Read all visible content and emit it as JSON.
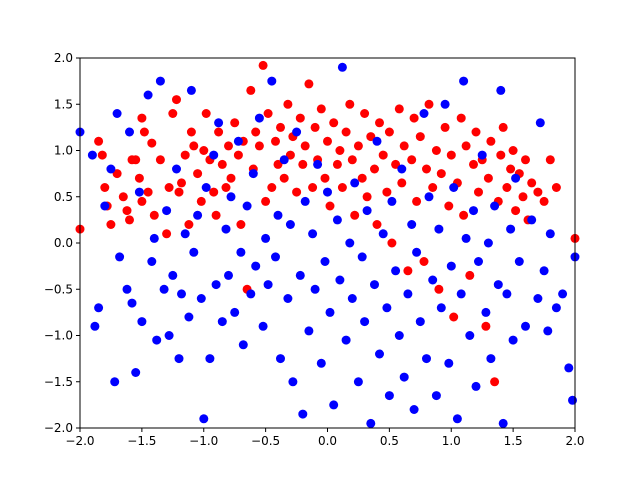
{
  "chart_data": {
    "type": "scatter",
    "title": "",
    "xlabel": "",
    "ylabel": "",
    "xlim": [
      -2.0,
      2.0
    ],
    "ylim": [
      -2.0,
      2.0
    ],
    "grid": false,
    "x_ticks": [
      "−2.0",
      "−1.5",
      "−1.0",
      "−0.5",
      "0.0",
      "0.5",
      "1.0",
      "1.5",
      "2.0"
    ],
    "y_ticks": [
      "−2.0",
      "−1.5",
      "−1.0",
      "−0.5",
      "0.0",
      "0.5",
      "1.0",
      "1.5",
      "2.0"
    ],
    "series": [
      {
        "color": "#ff0000",
        "points": [
          [
            -2.0,
            0.15
          ],
          [
            -1.85,
            1.1
          ],
          [
            -1.82,
            0.95
          ],
          [
            -1.8,
            0.6
          ],
          [
            -1.78,
            0.4
          ],
          [
            -1.75,
            0.2
          ],
          [
            -1.7,
            0.75
          ],
          [
            -1.65,
            0.5
          ],
          [
            -1.62,
            0.35
          ],
          [
            -1.6,
            0.25
          ],
          [
            -1.58,
            0.9
          ],
          [
            -1.55,
            0.9
          ],
          [
            -1.52,
            0.7
          ],
          [
            -1.5,
            0.45
          ],
          [
            -1.45,
            0.55
          ],
          [
            -1.5,
            1.35
          ],
          [
            -1.48,
            1.2
          ],
          [
            -1.42,
            1.08
          ],
          [
            -1.4,
            0.3
          ],
          [
            -1.35,
            0.9
          ],
          [
            -1.3,
            0.1
          ],
          [
            -1.28,
            0.6
          ],
          [
            -1.25,
            1.4
          ],
          [
            -1.22,
            1.55
          ],
          [
            -1.2,
            0.55
          ],
          [
            -1.18,
            0.65
          ],
          [
            -1.15,
            0.95
          ],
          [
            -1.12,
            0.2
          ],
          [
            -1.1,
            1.2
          ],
          [
            -1.08,
            1.05
          ],
          [
            -1.05,
            0.75
          ],
          [
            -1.02,
            0.45
          ],
          [
            -1.0,
            1.0
          ],
          [
            -0.98,
            1.4
          ],
          [
            -0.95,
            0.9
          ],
          [
            -0.92,
            0.55
          ],
          [
            -0.9,
            0.3
          ],
          [
            -0.88,
            1.2
          ],
          [
            -0.85,
            0.85
          ],
          [
            -0.82,
            0.6
          ],
          [
            -0.8,
            1.05
          ],
          [
            -0.78,
            0.7
          ],
          [
            -0.75,
            1.3
          ],
          [
            -0.72,
            0.95
          ],
          [
            -0.7,
            0.2
          ],
          [
            -0.68,
            1.1
          ],
          [
            -0.65,
            -0.5
          ],
          [
            -0.62,
            1.65
          ],
          [
            -0.6,
            0.8
          ],
          [
            -0.58,
            1.2
          ],
          [
            -0.55,
            1.05
          ],
          [
            -0.52,
            1.92
          ],
          [
            -0.5,
            0.45
          ],
          [
            -0.48,
            1.4
          ],
          [
            -0.45,
            0.6
          ],
          [
            -0.42,
            1.1
          ],
          [
            -0.4,
            0.85
          ],
          [
            -0.38,
            1.25
          ],
          [
            -0.35,
            0.7
          ],
          [
            -0.32,
            1.5
          ],
          [
            -0.3,
            0.95
          ],
          [
            -0.28,
            1.15
          ],
          [
            -0.25,
            0.55
          ],
          [
            -0.22,
            1.35
          ],
          [
            -0.2,
            0.85
          ],
          [
            -0.18,
            1.05
          ],
          [
            -0.15,
            1.72
          ],
          [
            -0.12,
            0.6
          ],
          [
            -0.1,
            1.25
          ],
          [
            -0.08,
            0.9
          ],
          [
            -0.05,
            1.45
          ],
          [
            -0.02,
            0.7
          ],
          [
            0.0,
            1.1
          ],
          [
            0.02,
            0.4
          ],
          [
            0.05,
            1.3
          ],
          [
            0.08,
            0.85
          ],
          [
            0.1,
            1.0
          ],
          [
            0.12,
            0.6
          ],
          [
            0.15,
            1.2
          ],
          [
            0.18,
            1.5
          ],
          [
            0.2,
            0.9
          ],
          [
            0.22,
            0.3
          ],
          [
            0.25,
            1.05
          ],
          [
            0.28,
            0.7
          ],
          [
            0.3,
            1.4
          ],
          [
            0.32,
            0.5
          ],
          [
            0.35,
            1.15
          ],
          [
            0.38,
            0.8
          ],
          [
            0.4,
            0.2
          ],
          [
            0.42,
            1.3
          ],
          [
            0.45,
            0.95
          ],
          [
            0.48,
            0.55
          ],
          [
            0.5,
            1.2
          ],
          [
            0.52,
            0.0
          ],
          [
            0.55,
            0.85
          ],
          [
            0.58,
            1.45
          ],
          [
            0.6,
            0.65
          ],
          [
            0.62,
            1.05
          ],
          [
            0.65,
            -0.3
          ],
          [
            0.68,
            0.9
          ],
          [
            0.7,
            1.35
          ],
          [
            0.72,
            0.45
          ],
          [
            0.75,
            1.15
          ],
          [
            0.78,
            -0.2
          ],
          [
            0.8,
            0.8
          ],
          [
            0.82,
            1.5
          ],
          [
            0.85,
            0.6
          ],
          [
            0.88,
            1.0
          ],
          [
            0.9,
            -0.5
          ],
          [
            0.92,
            0.75
          ],
          [
            0.95,
            1.25
          ],
          [
            0.98,
            0.4
          ],
          [
            1.0,
            0.95
          ],
          [
            1.02,
            -0.8
          ],
          [
            1.05,
            0.65
          ],
          [
            1.08,
            1.35
          ],
          [
            1.1,
            0.3
          ],
          [
            1.12,
            1.05
          ],
          [
            1.15,
            -0.35
          ],
          [
            1.18,
            0.85
          ],
          [
            1.2,
            1.2
          ],
          [
            1.22,
            0.55
          ],
          [
            1.25,
            0.9
          ],
          [
            1.28,
            -0.9
          ],
          [
            1.3,
            0.7
          ],
          [
            1.32,
            1.1
          ],
          [
            1.35,
            -1.5
          ],
          [
            1.38,
            0.45
          ],
          [
            1.4,
            0.95
          ],
          [
            1.42,
            1.25
          ],
          [
            1.45,
            0.6
          ],
          [
            1.48,
            0.8
          ],
          [
            1.5,
            1.0
          ],
          [
            1.52,
            0.35
          ],
          [
            1.55,
            0.75
          ],
          [
            1.58,
            0.5
          ],
          [
            1.6,
            0.9
          ],
          [
            1.62,
            0.25
          ],
          [
            1.65,
            0.65
          ],
          [
            1.7,
            0.55
          ],
          [
            1.75,
            0.45
          ],
          [
            1.8,
            0.9
          ],
          [
            1.85,
            0.6
          ],
          [
            2.0,
            0.05
          ]
        ]
      },
      {
        "color": "#0000ff",
        "points": [
          [
            -2.0,
            1.2
          ],
          [
            -1.9,
            0.95
          ],
          [
            -1.88,
            -0.9
          ],
          [
            -1.85,
            -0.7
          ],
          [
            -1.8,
            0.4
          ],
          [
            -1.75,
            0.8
          ],
          [
            -1.72,
            -1.5
          ],
          [
            -1.7,
            1.4
          ],
          [
            -1.68,
            -0.15
          ],
          [
            -1.62,
            -0.5
          ],
          [
            -1.6,
            1.2
          ],
          [
            -1.58,
            -0.65
          ],
          [
            -1.55,
            -1.4
          ],
          [
            -1.52,
            0.55
          ],
          [
            -1.5,
            -0.85
          ],
          [
            -1.45,
            1.6
          ],
          [
            -1.42,
            -0.2
          ],
          [
            -1.4,
            0.05
          ],
          [
            -1.38,
            -1.05
          ],
          [
            -1.35,
            1.75
          ],
          [
            -1.32,
            -0.5
          ],
          [
            -1.3,
            0.35
          ],
          [
            -1.28,
            -1.0
          ],
          [
            -1.25,
            -0.35
          ],
          [
            -1.22,
            0.8
          ],
          [
            -1.2,
            -1.25
          ],
          [
            -1.18,
            -0.55
          ],
          [
            -1.15,
            0.1
          ],
          [
            -1.12,
            -0.8
          ],
          [
            -1.1,
            1.65
          ],
          [
            -1.08,
            -0.1
          ],
          [
            -1.05,
            0.3
          ],
          [
            -1.02,
            -0.6
          ],
          [
            -1.0,
            -1.9
          ],
          [
            -0.98,
            0.6
          ],
          [
            -0.95,
            -1.25
          ],
          [
            -0.92,
            0.95
          ],
          [
            -0.9,
            -0.45
          ],
          [
            -0.88,
            1.3
          ],
          [
            -0.85,
            -0.85
          ],
          [
            -0.82,
            0.15
          ],
          [
            -0.8,
            -0.35
          ],
          [
            -0.78,
            0.5
          ],
          [
            -0.75,
            -0.75
          ],
          [
            -0.72,
            1.1
          ],
          [
            -0.7,
            -0.1
          ],
          [
            -0.68,
            -1.1
          ],
          [
            -0.65,
            0.4
          ],
          [
            -0.62,
            -0.55
          ],
          [
            -0.6,
            0.75
          ],
          [
            -0.58,
            -0.25
          ],
          [
            -0.55,
            1.35
          ],
          [
            -0.52,
            -0.9
          ],
          [
            -0.5,
            0.05
          ],
          [
            -0.48,
            -0.45
          ],
          [
            -0.45,
            1.75
          ],
          [
            -0.42,
            -0.15
          ],
          [
            -0.4,
            0.3
          ],
          [
            -0.38,
            -1.25
          ],
          [
            -0.35,
            0.9
          ],
          [
            -0.32,
            -0.6
          ],
          [
            -0.3,
            0.2
          ],
          [
            -0.28,
            -1.5
          ],
          [
            -0.25,
            1.2
          ],
          [
            -0.22,
            -0.35
          ],
          [
            -0.2,
            -1.85
          ],
          [
            -0.18,
            0.45
          ],
          [
            -0.15,
            -0.95
          ],
          [
            -0.12,
            0.1
          ],
          [
            -0.1,
            -0.5
          ],
          [
            -0.08,
            0.85
          ],
          [
            -0.05,
            -1.3
          ],
          [
            -0.02,
            -0.2
          ],
          [
            0.0,
            0.55
          ],
          [
            0.02,
            -0.75
          ],
          [
            0.05,
            -1.75
          ],
          [
            0.08,
            0.25
          ],
          [
            0.1,
            -0.4
          ],
          [
            0.12,
            1.9
          ],
          [
            0.15,
            -1.05
          ],
          [
            0.18,
            0.0
          ],
          [
            0.2,
            -0.6
          ],
          [
            0.22,
            0.65
          ],
          [
            0.25,
            -1.5
          ],
          [
            0.28,
            -0.15
          ],
          [
            0.3,
            -0.85
          ],
          [
            0.32,
            0.35
          ],
          [
            0.35,
            -1.95
          ],
          [
            0.38,
            -0.45
          ],
          [
            0.4,
            1.1
          ],
          [
            0.42,
            -1.2
          ],
          [
            0.45,
            0.1
          ],
          [
            0.48,
            -0.7
          ],
          [
            0.5,
            -1.65
          ],
          [
            0.52,
            0.45
          ],
          [
            0.55,
            -0.3
          ],
          [
            0.58,
            -1.0
          ],
          [
            0.6,
            0.8
          ],
          [
            0.62,
            -1.45
          ],
          [
            0.65,
            -0.55
          ],
          [
            0.68,
            0.2
          ],
          [
            0.7,
            -1.8
          ],
          [
            0.72,
            -0.1
          ],
          [
            0.75,
            -0.85
          ],
          [
            0.78,
            1.4
          ],
          [
            0.8,
            -1.25
          ],
          [
            0.82,
            0.5
          ],
          [
            0.85,
            -0.4
          ],
          [
            0.88,
            -1.65
          ],
          [
            0.9,
            0.15
          ],
          [
            0.92,
            -0.7
          ],
          [
            0.95,
            1.5
          ],
          [
            0.98,
            -1.3
          ],
          [
            1.0,
            -0.25
          ],
          [
            1.02,
            0.6
          ],
          [
            1.05,
            -1.9
          ],
          [
            1.08,
            -0.55
          ],
          [
            1.1,
            1.75
          ],
          [
            1.12,
            0.05
          ],
          [
            1.15,
            -1.0
          ],
          [
            1.18,
            0.35
          ],
          [
            1.2,
            -1.55
          ],
          [
            1.22,
            -0.2
          ],
          [
            1.25,
            0.95
          ],
          [
            1.28,
            -0.75
          ],
          [
            1.3,
            0.0
          ],
          [
            1.32,
            -1.25
          ],
          [
            1.35,
            0.4
          ],
          [
            1.38,
            -0.45
          ],
          [
            1.4,
            1.65
          ],
          [
            1.42,
            -1.95
          ],
          [
            1.45,
            -0.55
          ],
          [
            1.48,
            0.15
          ],
          [
            1.5,
            -1.05
          ],
          [
            1.52,
            0.7
          ],
          [
            1.55,
            -0.2
          ],
          [
            1.6,
            -0.9
          ],
          [
            1.65,
            0.25
          ],
          [
            1.7,
            -0.6
          ],
          [
            1.72,
            1.3
          ],
          [
            1.75,
            -0.3
          ],
          [
            1.78,
            -0.95
          ],
          [
            1.8,
            0.1
          ],
          [
            1.85,
            -0.7
          ],
          [
            1.9,
            -0.55
          ],
          [
            1.95,
            -1.35
          ],
          [
            1.98,
            -1.7
          ],
          [
            2.0,
            -0.15
          ]
        ]
      }
    ]
  }
}
